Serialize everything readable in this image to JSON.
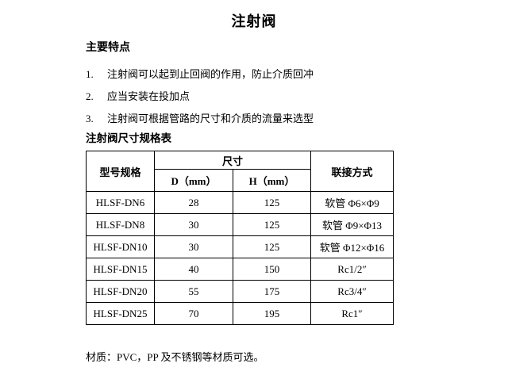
{
  "page": {
    "title": "注射阀",
    "features": {
      "heading": "主要特点",
      "items": [
        {
          "num": "1.",
          "text": "注射阀可以起到止回阀的作用，防止介质回冲"
        },
        {
          "num": "2.",
          "text": "应当安装在投加点"
        },
        {
          "num": "3.",
          "text": "注射阀可根据管路的尺寸和介质的流量来选型"
        }
      ]
    },
    "table": {
      "caption": "注射阀尺寸规格表",
      "headers": {
        "model": "型号规格",
        "size_group": "尺寸",
        "d": "D（mm）",
        "h": "H（mm）",
        "connection": "联接方式"
      },
      "rows": [
        {
          "model": "HLSF-DN6",
          "d": "28",
          "h": "125",
          "connection": "软管 Φ6×Φ9"
        },
        {
          "model": "HLSF-DN8",
          "d": "30",
          "h": "125",
          "connection": "软管 Φ9×Φ13"
        },
        {
          "model": "HLSF-DN10",
          "d": "30",
          "h": "125",
          "connection": "软管 Φ12×Φ16"
        },
        {
          "model": "HLSF-DN15",
          "d": "40",
          "h": "150",
          "connection": "Rc1/2″"
        },
        {
          "model": "HLSF-DN20",
          "d": "55",
          "h": "175",
          "connection": "Rc3/4″"
        },
        {
          "model": "HLSF-DN25",
          "d": "70",
          "h": "195",
          "connection": "Rc1″"
        }
      ]
    },
    "note": "材质：PVC，PP 及不锈钢等材质可选。"
  },
  "colors": {
    "text": "#000000",
    "background": "#ffffff",
    "table_border": "#000000"
  }
}
